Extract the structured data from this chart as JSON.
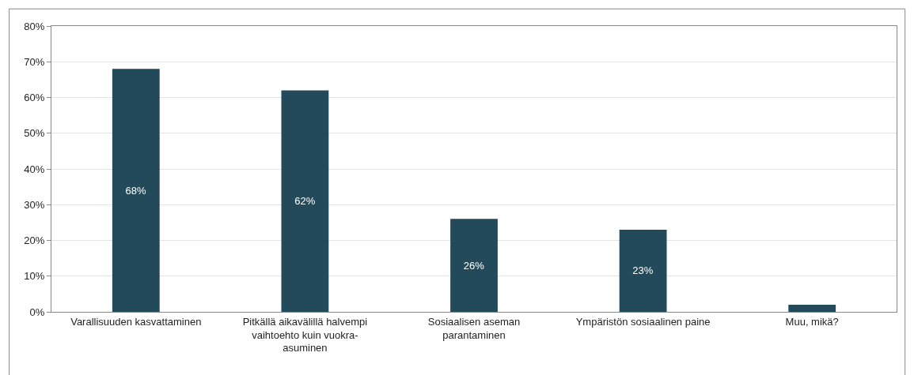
{
  "chart_data": {
    "type": "bar",
    "categories": [
      "Varallisuuden kasvattaminen",
      "Pitkällä aikavälillä halvempi vaihtoehto kuin vuokra-asuminen",
      "Sosiaalisen aseman parantaminen",
      "Ympäristön sosiaalinen paine",
      "Muu, mikä?"
    ],
    "values": [
      68,
      62,
      26,
      23,
      2
    ],
    "value_labels": [
      "68%",
      "62%",
      "26%",
      "23%",
      null
    ],
    "color": "#224a5a",
    "ylim": [
      0,
      80
    ],
    "yticks": [
      {
        "value": 0,
        "label": "0%"
      },
      {
        "value": 10,
        "label": "10%"
      },
      {
        "value": 20,
        "label": "20%"
      },
      {
        "value": 30,
        "label": "30%"
      },
      {
        "value": 40,
        "label": "40%"
      },
      {
        "value": 50,
        "label": "50%"
      },
      {
        "value": 60,
        "label": "60%"
      },
      {
        "value": 70,
        "label": "70%"
      },
      {
        "value": 80,
        "label": "80%"
      }
    ],
    "grid": "y",
    "legend": false
  }
}
